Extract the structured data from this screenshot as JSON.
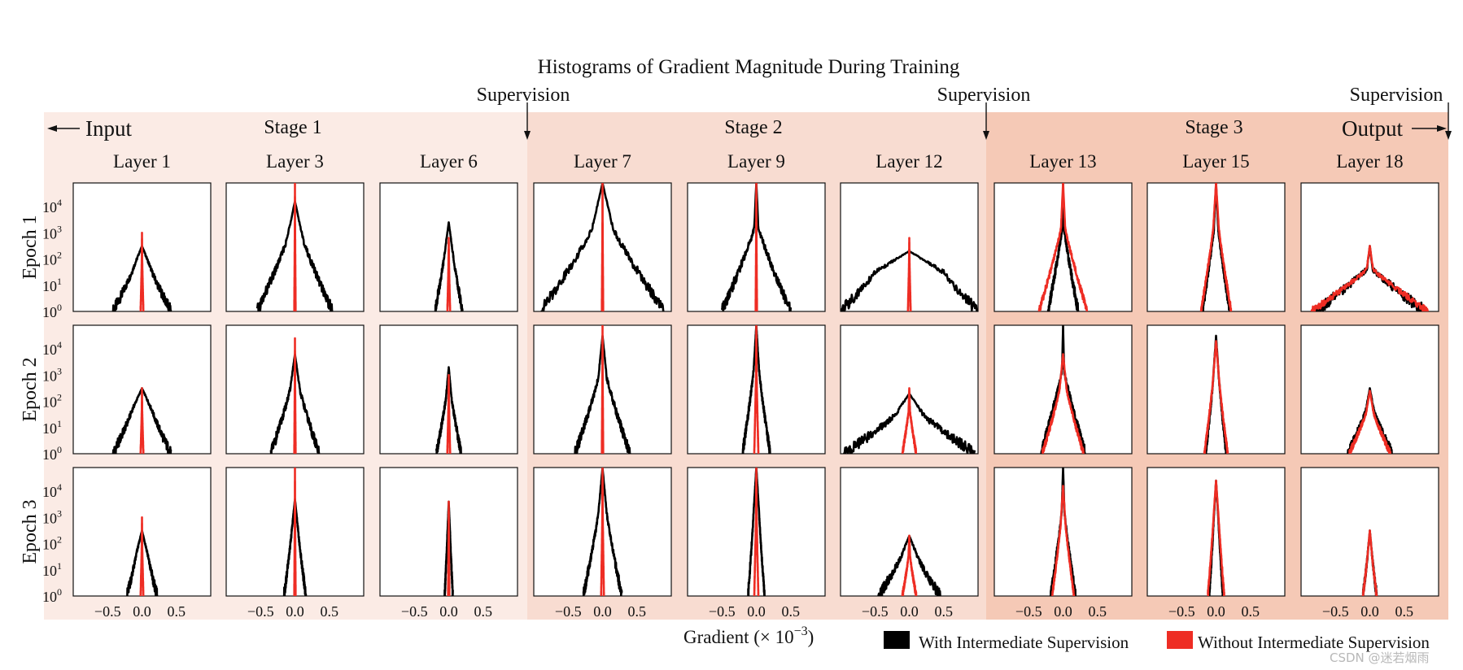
{
  "title": "Histograms of Gradient Magnitude During Training",
  "supervision_label": "Supervision",
  "input_label": "Input",
  "output_label": "Output",
  "stages": [
    {
      "label": "Stage 1",
      "color": "#fbebe5"
    },
    {
      "label": "Stage 2",
      "color": "#f8dcd1"
    },
    {
      "label": "Stage 3",
      "color": "#f5c9b6"
    }
  ],
  "watermark": "CSDN @迷若烟雨",
  "chart_data": {
    "type": "line",
    "title": "Histograms of Gradient Magnitude During Training",
    "xlabel_text": "Gradient (× 10",
    "xlabel_exp": "−3",
    "xlabel_close": ")",
    "ylabel": "",
    "columns": [
      "Layer 1",
      "Layer 3",
      "Layer 6",
      "Layer 7",
      "Layer 9",
      "Layer 12",
      "Layer 13",
      "Layer 15",
      "Layer 18"
    ],
    "column_stage": [
      0,
      0,
      0,
      1,
      1,
      1,
      2,
      2,
      2
    ],
    "rows": [
      "Epoch 1",
      "Epoch 2",
      "Epoch 3"
    ],
    "x_ticks": [
      "−0.5",
      "0.0",
      "0.5"
    ],
    "x_tick_values": [
      -0.5,
      0.0,
      0.5
    ],
    "xlim": [
      -1.0,
      1.0
    ],
    "y_scale": "log",
    "ylim_exp": [
      0,
      4.9
    ],
    "y_ticks": [
      {
        "base": "10",
        "exp": "0"
      },
      {
        "base": "10",
        "exp": "1"
      },
      {
        "base": "10",
        "exp": "2"
      },
      {
        "base": "10",
        "exp": "3"
      },
      {
        "base": "10",
        "exp": "4"
      }
    ],
    "series": [
      {
        "name": "With Intermediate Supervision",
        "color": "#000000"
      },
      {
        "name": "Without Intermediate Supervision",
        "color": "#ee2d24"
      }
    ],
    "panels": [
      [
        {
          "black": [
            0.42,
            2.5,
            0.13
          ],
          "red": [
            0.02,
            3.0,
            0.003
          ]
        },
        {
          "black": [
            0.55,
            4.2,
            0.12
          ],
          "red": [
            0.01,
            4.9,
            0.002
          ]
        },
        {
          "black": [
            0.2,
            3.4,
            0.06
          ],
          "red": [
            0.02,
            2.8,
            0.004
          ]
        },
        {
          "black": [
            0.9,
            4.9,
            0.15
          ],
          "red": [
            0.01,
            4.9,
            0.002
          ]
        },
        {
          "black": [
            0.5,
            4.9,
            0.03
          ],
          "red": [
            0.01,
            4.9,
            0.002
          ]
        },
        {
          "black": [
            1.0,
            2.3,
            0.5
          ],
          "red": [
            0.02,
            2.8,
            0.004
          ]
        },
        {
          "black": [
            0.22,
            4.9,
            0.012
          ],
          "red": [
            0.35,
            4.9,
            0.03
          ]
        },
        {
          "black": [
            0.2,
            4.9,
            0.03
          ],
          "red": [
            0.22,
            4.9,
            0.04
          ]
        },
        {
          "black": [
            0.8,
            2.5,
            0.04
          ],
          "red": [
            0.85,
            2.5,
            0.045
          ]
        }
      ],
      [
        {
          "black": [
            0.42,
            2.5,
            0.15
          ],
          "red": [
            0.02,
            2.5,
            0.003
          ]
        },
        {
          "black": [
            0.35,
            3.8,
            0.07
          ],
          "red": [
            0.01,
            4.4,
            0.002
          ]
        },
        {
          "black": [
            0.18,
            3.3,
            0.04
          ],
          "red": [
            0.02,
            3.0,
            0.004
          ]
        },
        {
          "black": [
            0.4,
            4.5,
            0.06
          ],
          "red": [
            0.01,
            4.9,
            0.002
          ]
        },
        {
          "black": [
            0.2,
            4.9,
            0.04
          ],
          "red": [
            0.03,
            4.9,
            0.003
          ]
        },
        {
          "black": [
            0.95,
            2.3,
            0.2
          ],
          "red": [
            0.1,
            2.5,
            0.01
          ]
        },
        {
          "black": [
            0.32,
            4.9,
            0.015
          ],
          "red": [
            0.3,
            3.8,
            0.05
          ]
        },
        {
          "black": [
            0.15,
            4.5,
            0.04
          ],
          "red": [
            0.17,
            4.3,
            0.045
          ]
        },
        {
          "black": [
            0.32,
            2.5,
            0.06
          ],
          "red": [
            0.3,
            2.4,
            0.055
          ]
        }
      ],
      [
        {
          "black": [
            0.22,
            2.5,
            0.08
          ],
          "red": [
            0.02,
            3.0,
            0.003
          ]
        },
        {
          "black": [
            0.16,
            3.7,
            0.05
          ],
          "red": [
            0.01,
            4.9,
            0.002
          ]
        },
        {
          "black": [
            0.06,
            3.6,
            0.02
          ],
          "red": [
            0.01,
            3.6,
            0.002
          ]
        },
        {
          "black": [
            0.28,
            4.9,
            0.06
          ],
          "red": [
            0.02,
            4.9,
            0.003
          ]
        },
        {
          "black": [
            0.12,
            4.9,
            0.04
          ],
          "red": [
            0.03,
            4.9,
            0.004
          ]
        },
        {
          "black": [
            0.45,
            2.3,
            0.12
          ],
          "red": [
            0.1,
            2.3,
            0.012
          ]
        },
        {
          "black": [
            0.18,
            4.9,
            0.02
          ],
          "red": [
            0.16,
            4.2,
            0.035
          ]
        },
        {
          "black": [
            0.1,
            4.4,
            0.035
          ],
          "red": [
            0.12,
            4.4,
            0.04
          ]
        },
        {
          "black": [
            0.1,
            2.5,
            0.03
          ],
          "red": [
            0.1,
            2.5,
            0.03
          ]
        }
      ]
    ]
  }
}
